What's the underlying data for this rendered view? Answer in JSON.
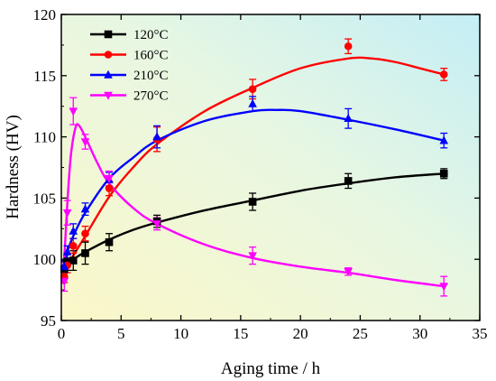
{
  "chart_data": {
    "type": "line",
    "title": "",
    "xlabel": "Aging time / h",
    "ylabel": "Hardness (HV)",
    "xlim": [
      0,
      35
    ],
    "ylim": [
      95,
      120
    ],
    "xticks": [
      0,
      5,
      10,
      15,
      20,
      25,
      30,
      35
    ],
    "yticks": [
      95,
      100,
      105,
      110,
      115,
      120
    ],
    "grid": false,
    "legend_position": "top-left",
    "background": "gradient yellow-to-cyan",
    "series": [
      {
        "name": "120°C",
        "color": "#000000",
        "marker": "square",
        "points": [
          {
            "x": 0.25,
            "y": 99.2,
            "err": 0.6
          },
          {
            "x": 0.5,
            "y": 99.8,
            "err": 0.7
          },
          {
            "x": 1,
            "y": 99.9,
            "err": 0.8
          },
          {
            "x": 2,
            "y": 100.5,
            "err": 0.9
          },
          {
            "x": 4,
            "y": 101.4,
            "err": 0.7
          },
          {
            "x": 8,
            "y": 103.1,
            "err": 0.5
          },
          {
            "x": 16,
            "y": 104.7,
            "err": 0.7
          },
          {
            "x": 24,
            "y": 106.4,
            "err": 0.6
          },
          {
            "x": 32,
            "y": 107.0,
            "err": 0.4
          }
        ],
        "fit": [
          [
            0.1,
            99.1
          ],
          [
            0.5,
            99.6
          ],
          [
            1,
            100.0
          ],
          [
            2,
            100.6
          ],
          [
            4,
            101.6
          ],
          [
            6,
            102.4
          ],
          [
            8,
            103.0
          ],
          [
            12,
            104.0
          ],
          [
            16,
            104.8
          ],
          [
            20,
            105.6
          ],
          [
            24,
            106.2
          ],
          [
            28,
            106.7
          ],
          [
            32,
            107.0
          ]
        ]
      },
      {
        "name": "160°C",
        "color": "#ff0000",
        "marker": "circle",
        "points": [
          {
            "x": 0.25,
            "y": 98.6,
            "err": 0.5
          },
          {
            "x": 0.5,
            "y": 99.5,
            "err": 0.6
          },
          {
            "x": 1,
            "y": 101.1,
            "err": 0.6
          },
          {
            "x": 2,
            "y": 102.1,
            "err": 0.6
          },
          {
            "x": 4,
            "y": 105.8,
            "err": 0.6
          },
          {
            "x": 8,
            "y": 109.8,
            "err": 1.0
          },
          {
            "x": 16,
            "y": 113.9,
            "err": 0.8
          },
          {
            "x": 24,
            "y": 117.4,
            "err": 0.6
          },
          {
            "x": 32,
            "y": 115.1,
            "err": 0.5
          }
        ],
        "fit": [
          [
            0.1,
            98.6
          ],
          [
            0.5,
            99.4
          ],
          [
            1,
            100.3
          ],
          [
            2,
            101.9
          ],
          [
            4,
            105.1
          ],
          [
            6,
            107.5
          ],
          [
            8,
            109.4
          ],
          [
            12,
            112.1
          ],
          [
            16,
            114.0
          ],
          [
            20,
            115.6
          ],
          [
            24,
            116.4
          ],
          [
            26,
            116.4
          ],
          [
            28,
            116.1
          ],
          [
            30,
            115.6
          ],
          [
            32,
            115.1
          ]
        ]
      },
      {
        "name": "210°C",
        "color": "#0000ff",
        "marker": "triangle-up",
        "points": [
          {
            "x": 0.25,
            "y": 99.4,
            "err": 0.5
          },
          {
            "x": 0.5,
            "y": 100.6,
            "err": 0.5
          },
          {
            "x": 1,
            "y": 102.3,
            "err": 0.6
          },
          {
            "x": 2,
            "y": 104.1,
            "err": 0.5
          },
          {
            "x": 4,
            "y": 106.5,
            "err": 0.6
          },
          {
            "x": 8,
            "y": 110.0,
            "err": 0.9
          },
          {
            "x": 16,
            "y": 112.7,
            "err": 0.6
          },
          {
            "x": 24,
            "y": 111.5,
            "err": 0.8
          },
          {
            "x": 32,
            "y": 109.7,
            "err": 0.6
          }
        ],
        "fit": [
          [
            0.1,
            99.3
          ],
          [
            0.5,
            100.6
          ],
          [
            1,
            101.9
          ],
          [
            2,
            103.8
          ],
          [
            4,
            106.6
          ],
          [
            6,
            108.3
          ],
          [
            8,
            109.7
          ],
          [
            12,
            111.3
          ],
          [
            16,
            112.1
          ],
          [
            18,
            112.2
          ],
          [
            20,
            112.1
          ],
          [
            24,
            111.4
          ],
          [
            28,
            110.6
          ],
          [
            32,
            109.7
          ]
        ]
      },
      {
        "name": "270°C",
        "color": "#ff00ff",
        "marker": "triangle-down",
        "points": [
          {
            "x": 0.25,
            "y": 98.2,
            "err": 0.8
          },
          {
            "x": 0.5,
            "y": 103.8,
            "err": 1.0
          },
          {
            "x": 1,
            "y": 112.1,
            "err": 1.1
          },
          {
            "x": 2,
            "y": 109.6,
            "err": 0.6
          },
          {
            "x": 4,
            "y": 106.6,
            "err": 0.6
          },
          {
            "x": 8,
            "y": 102.9,
            "err": 0.5
          },
          {
            "x": 16,
            "y": 100.3,
            "err": 0.7
          },
          {
            "x": 24,
            "y": 99.0,
            "err": 0.3
          },
          {
            "x": 32,
            "y": 97.8,
            "err": 0.8
          }
        ],
        "fit": [
          [
            0.1,
            98.0
          ],
          [
            0.3,
            101.0
          ],
          [
            0.5,
            104.5
          ],
          [
            0.8,
            108.5
          ],
          [
            1.2,
            110.8
          ],
          [
            1.5,
            110.9
          ],
          [
            2,
            110.0
          ],
          [
            3,
            107.9
          ],
          [
            4,
            106.2
          ],
          [
            6,
            104.2
          ],
          [
            8,
            102.9
          ],
          [
            12,
            101.2
          ],
          [
            16,
            100.1
          ],
          [
            20,
            99.4
          ],
          [
            24,
            98.9
          ],
          [
            28,
            98.3
          ],
          [
            32,
            97.8
          ]
        ]
      }
    ]
  }
}
